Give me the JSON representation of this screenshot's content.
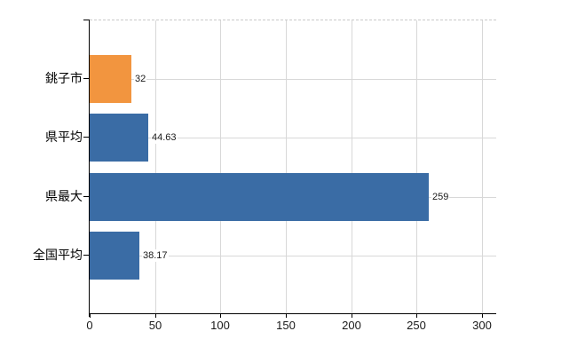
{
  "chart_data": {
    "type": "bar",
    "orientation": "horizontal",
    "title": "",
    "xlabel": "",
    "ylabel": "",
    "categories": [
      "銚子市",
      "県平均",
      "県最大",
      "全国平均"
    ],
    "values": [
      32,
      44.63,
      259,
      38.17
    ],
    "value_labels": [
      "32",
      "44.63",
      "259",
      "38.17"
    ],
    "bar_colors": [
      "#F2953F",
      "#3A6CA5",
      "#3A6CA5",
      "#3A6CA5"
    ],
    "x_ticks": [
      0,
      50,
      100,
      150,
      200,
      250,
      300
    ],
    "xlim": [
      0,
      310.9
    ],
    "grid": true,
    "legend_position": "none"
  },
  "colors": {
    "background": "#ffffff",
    "bar_orange": "#F2953F",
    "bar_blue": "#3A6CA5",
    "gridline": "#d8d8d8",
    "top_border_dashed": "#c9c9c9",
    "axis": "#000000",
    "text": "#1a1a1a"
  }
}
